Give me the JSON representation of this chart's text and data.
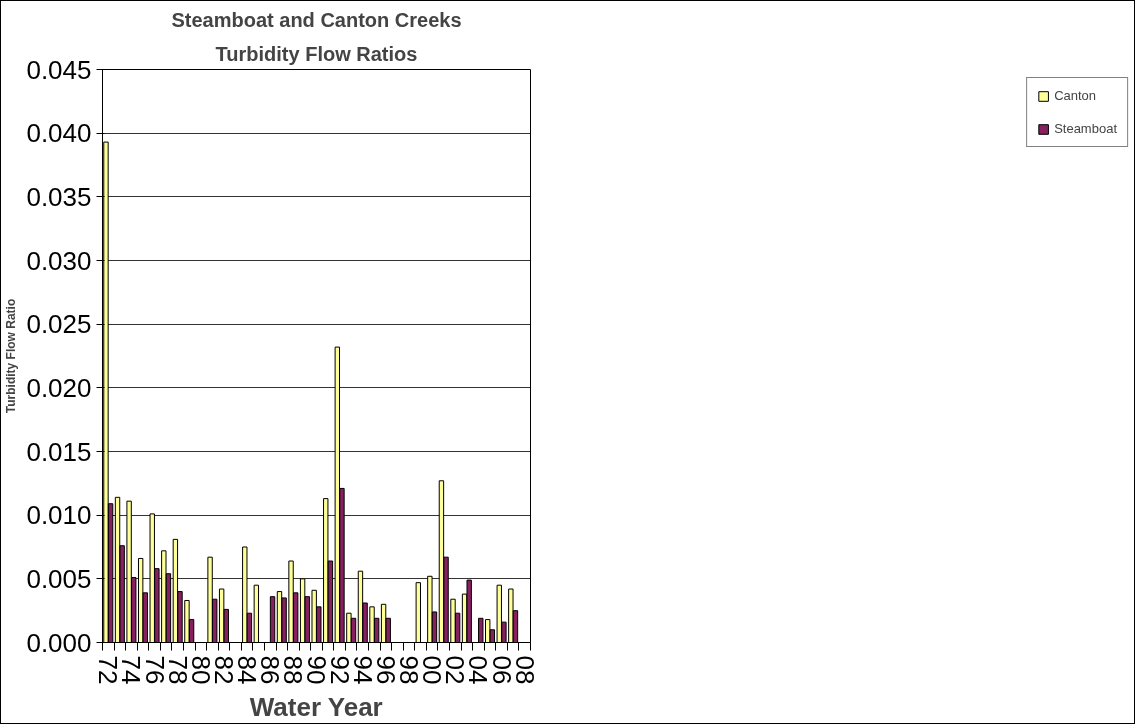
{
  "chart_data": {
    "type": "bar",
    "title": "Steamboat and Canton Creeks",
    "subtitle": "Turbidity Flow Ratios",
    "xlabel": "Water Year",
    "ylabel": "Turbidity Flow Ratio",
    "categories": [
      "72",
      null,
      "74",
      null,
      "76",
      null,
      "78",
      null,
      "80",
      null,
      "82",
      null,
      "84",
      null,
      "86",
      null,
      "88",
      null,
      "90",
      null,
      "92",
      null,
      "94",
      null,
      "96",
      null,
      "98",
      null,
      "00",
      null,
      "02",
      null,
      "04",
      null,
      "06",
      null,
      "08"
    ],
    "series": [
      {
        "name": "Canton",
        "color": "#ffff99",
        "values": [
          0.0393,
          0.0114,
          0.0111,
          0.0066,
          0.0101,
          0.0072,
          0.0081,
          0.0033,
          null,
          0.0067,
          0.0042,
          null,
          0.0075,
          0.0045,
          null,
          0.004,
          0.0064,
          0.005,
          0.0041,
          0.0113,
          0.0232,
          0.0023,
          0.0056,
          0.0028,
          0.003,
          null,
          null,
          0.0047,
          0.0052,
          0.0127,
          0.0034,
          0.0038,
          null,
          0.0018,
          0.0045,
          0.0042,
          null
        ]
      },
      {
        "name": "Steamboat",
        "color": "#862060",
        "values": [
          0.0109,
          0.0076,
          0.0051,
          0.0039,
          0.0058,
          0.0054,
          0.004,
          0.0018,
          null,
          0.0034,
          0.0026,
          null,
          0.0023,
          null,
          0.0036,
          0.0035,
          0.0039,
          0.0036,
          0.0028,
          0.0064,
          0.0121,
          0.0019,
          0.0031,
          0.0019,
          0.0019,
          null,
          null,
          null,
          0.0024,
          0.0067,
          0.0023,
          0.0049,
          0.0019,
          0.001,
          0.0016,
          0.0025,
          null
        ]
      }
    ],
    "ylim": [
      0,
      0.045
    ],
    "yticks": [
      {
        "value": 0,
        "label": "0.000"
      },
      {
        "value": 0.005,
        "label": "0.005"
      },
      {
        "value": 0.01,
        "label": "0.010"
      },
      {
        "value": 0.015,
        "label": "0.015"
      },
      {
        "value": 0.02,
        "label": "0.020"
      },
      {
        "value": 0.025,
        "label": "0.025"
      },
      {
        "value": 0.03,
        "label": "0.030"
      },
      {
        "value": 0.035,
        "label": "0.035"
      },
      {
        "value": 0.04,
        "label": "0.040"
      },
      {
        "value": 0.045,
        "label": "0.045"
      }
    ],
    "grid": "y",
    "legend": "right"
  }
}
